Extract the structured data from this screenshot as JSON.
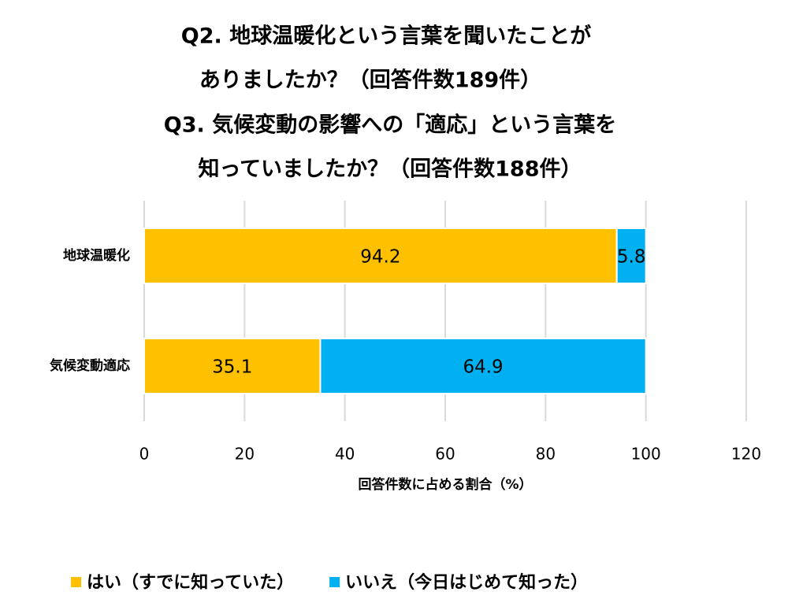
{
  "chart_data": {
    "type": "stacked-bar-horizontal",
    "title": [
      "Q2. 地球温暖化という言葉を聞いたことが",
      "ありましたか？（回答件数189件）",
      "Q3. 気候変動の影響への「適応」という言葉を",
      "知っていましたか？（回答件数188件）"
    ],
    "categories": [
      "地球温暖化",
      "気候変動適応"
    ],
    "series": [
      {
        "name": "はい（すでに知っていた）",
        "color": "#FFC000",
        "values": [
          94.2,
          35.1
        ]
      },
      {
        "name": "いいえ（今日はじめて知った）",
        "color": "#00B0F0",
        "values": [
          5.8,
          64.9
        ]
      }
    ],
    "xlim": [
      0,
      120
    ],
    "xticks": [
      0,
      20,
      40,
      60,
      80,
      100,
      120
    ],
    "x_label": "回答件数に占める割合（%）",
    "grid": true,
    "legend": "bottom"
  }
}
